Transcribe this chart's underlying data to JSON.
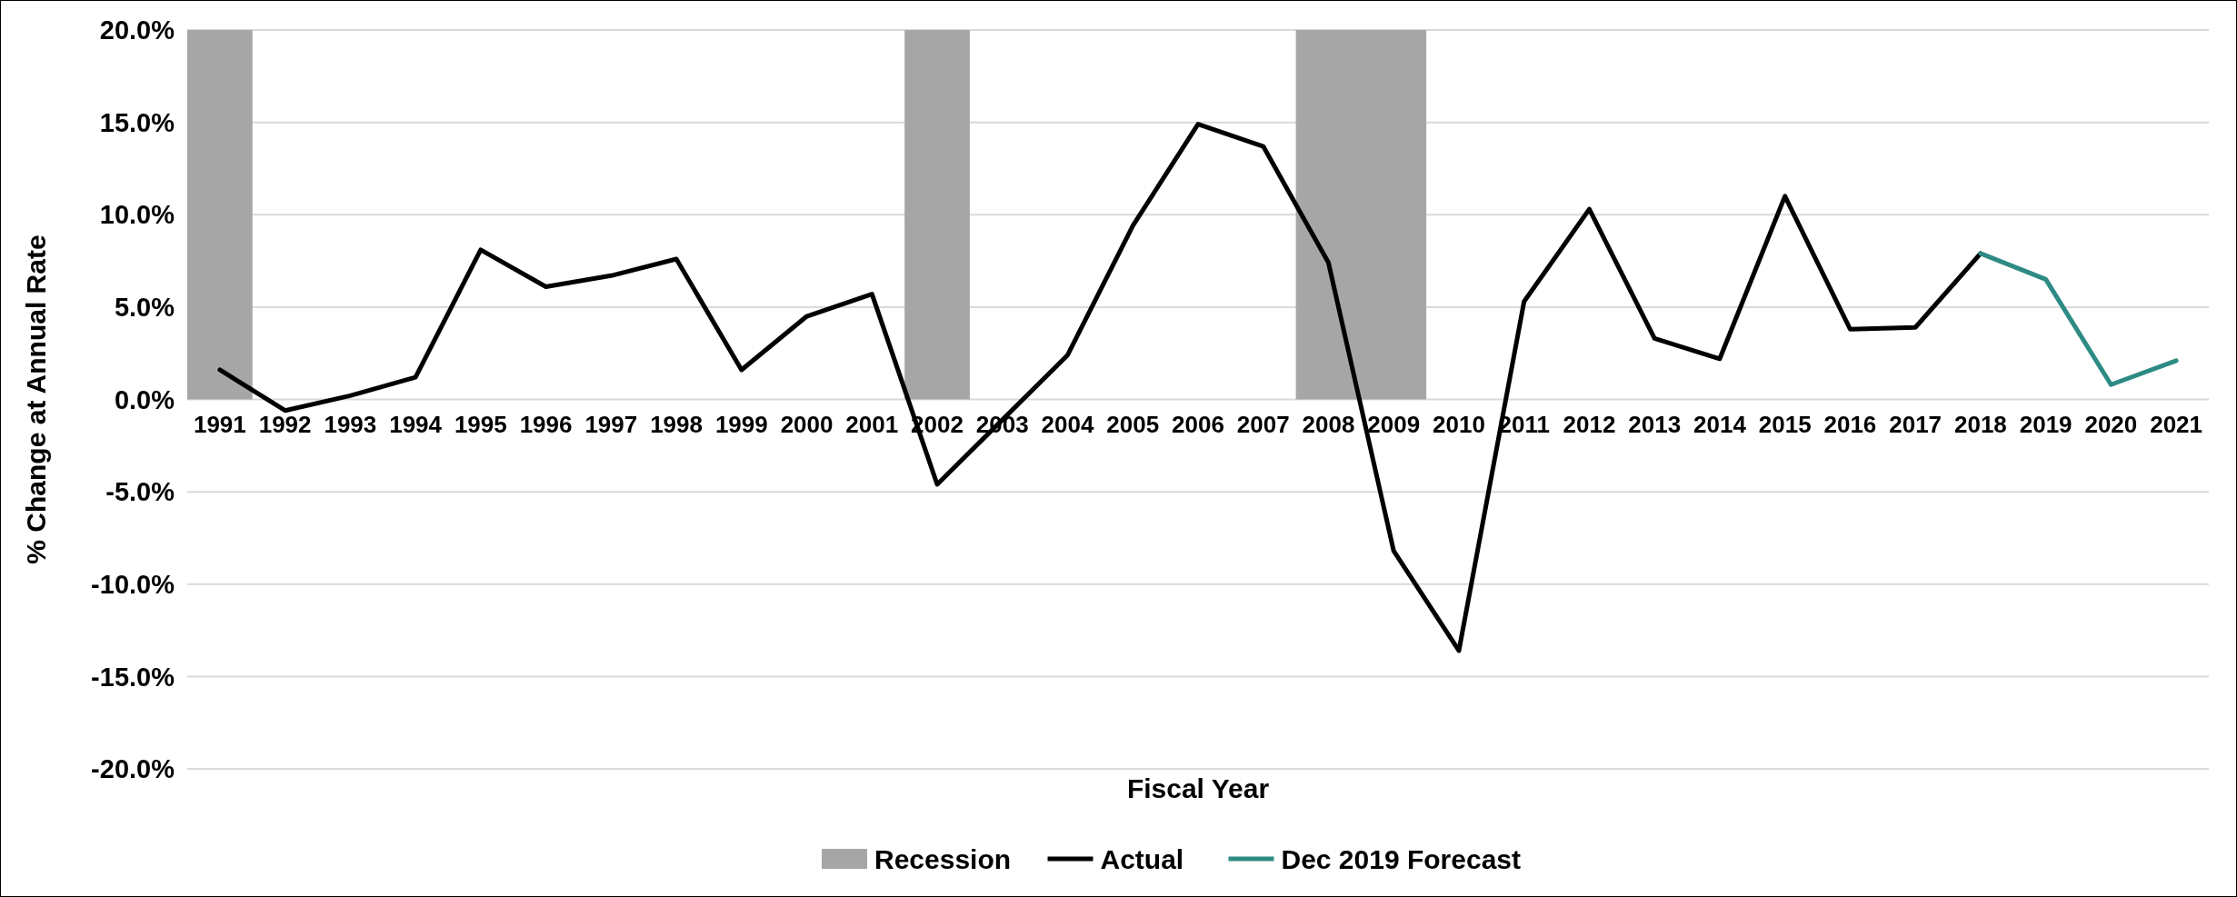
{
  "chart_data": {
    "type": "line",
    "xlabel": "Fiscal Year",
    "ylabel": "% Change at Annual Rate",
    "categories": [
      "1991",
      "1992",
      "1993",
      "1994",
      "1995",
      "1996",
      "1997",
      "1998",
      "1999",
      "2000",
      "2001",
      "2002",
      "2003",
      "2004",
      "2005",
      "2006",
      "2007",
      "2008",
      "2009",
      "2010",
      "2011",
      "2012",
      "2013",
      "2014",
      "2015",
      "2016",
      "2017",
      "2018",
      "2019",
      "2020",
      "2021"
    ],
    "series": [
      {
        "name": "Actual",
        "color": "#000000",
        "values": [
          1.6,
          -0.6,
          0.2,
          1.2,
          8.1,
          6.1,
          6.7,
          7.6,
          1.6,
          4.5,
          5.7,
          -4.6,
          -1.1,
          2.4,
          9.4,
          14.9,
          13.7,
          7.4,
          -8.2,
          -13.6,
          5.3,
          10.3,
          3.3,
          2.2,
          11.0,
          3.8,
          3.9,
          7.9,
          null,
          null,
          null
        ]
      },
      {
        "name": "Dec 2019 Forecast",
        "color": "#2e8b84",
        "values": [
          null,
          null,
          null,
          null,
          null,
          null,
          null,
          null,
          null,
          null,
          null,
          null,
          null,
          null,
          null,
          null,
          null,
          null,
          null,
          null,
          null,
          null,
          null,
          null,
          null,
          null,
          null,
          7.9,
          6.5,
          0.8,
          2.1
        ]
      }
    ],
    "bands": [
      {
        "axis": "x",
        "from": "1991",
        "to": "1991",
        "label": "Recession",
        "color": "#a6a6a6"
      },
      {
        "axis": "x",
        "from": "2002",
        "to": "2002",
        "color": "#a6a6a6"
      },
      {
        "axis": "x",
        "from": "2008",
        "to": "2009",
        "color": "#a6a6a6"
      }
    ],
    "ylim": [
      -20,
      20
    ],
    "yticks": [
      {
        "value": -20,
        "label": "-20.0%"
      },
      {
        "value": -15,
        "label": "-15.0%"
      },
      {
        "value": -10,
        "label": "-10.0%"
      },
      {
        "value": -5,
        "label": "-5.0%"
      },
      {
        "value": 0,
        "label": "0.0%"
      },
      {
        "value": 5,
        "label": "5.0%"
      },
      {
        "value": 10,
        "label": "10.0%"
      },
      {
        "value": 15,
        "label": "15.0%"
      },
      {
        "value": 20,
        "label": "20.0%"
      }
    ],
    "grid": "y",
    "legend": "bottom",
    "marker": "none",
    "line_style": "solid"
  }
}
